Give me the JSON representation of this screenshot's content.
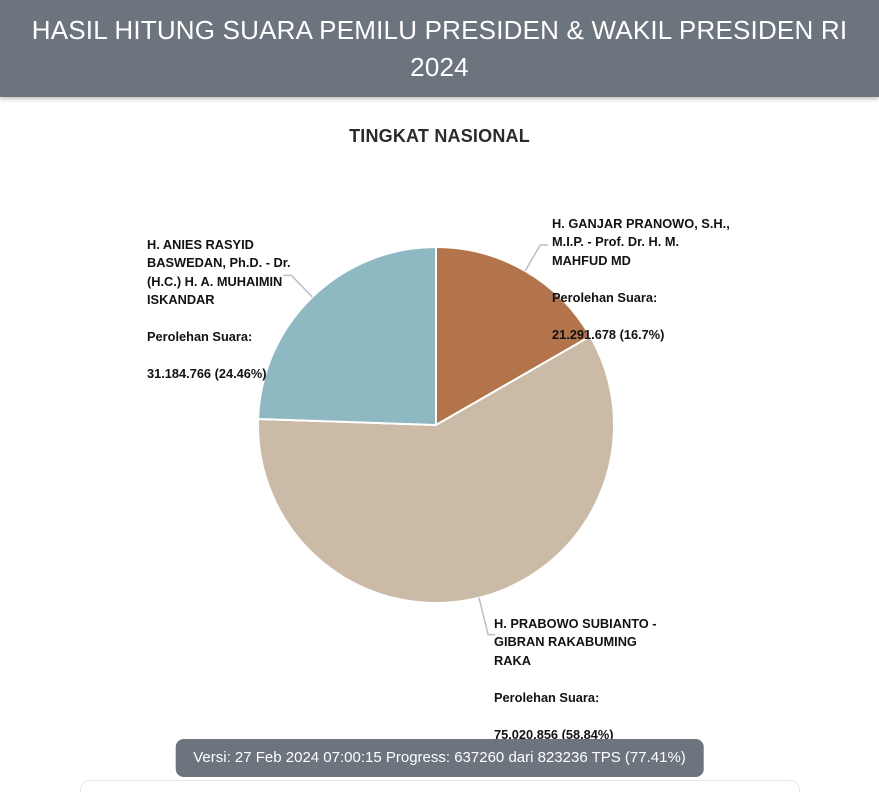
{
  "header": {
    "title": "HASIL HITUNG SUARA PEMILU PRESIDEN & WAKIL PRESIDEN RI 2024"
  },
  "section": {
    "title": "TINGKAT NASIONAL"
  },
  "chart_data": {
    "type": "pie",
    "title": "TINGKAT NASIONAL",
    "unit": "suara",
    "start_angle_deg": 0,
    "rotation": "clockwise",
    "legend_position": "none",
    "series": [
      {
        "id": "ganjar-mahfud",
        "name": "H. GANJAR PRANOWO, S.H.,\nM.I.P. - Prof. Dr. H. M.\nMAHFUD MD",
        "votes_label": "Perolehan Suara:",
        "votes": 21291678,
        "percent": 16.7,
        "value": 16.7,
        "votes_display": "21.291.678 (16.7%)",
        "color": "#b3744b"
      },
      {
        "id": "prabowo-gibran",
        "name": "H. PRABOWO SUBIANTO -\nGIBRAN RAKABUMING\nRAKA",
        "votes_label": "Perolehan Suara:",
        "votes": 75020856,
        "percent": 58.84,
        "value": 58.84,
        "votes_display": "75.020.856 (58.84%)",
        "color": "#cabaa6"
      },
      {
        "id": "anies-muhaimin",
        "name": "H. ANIES RASYID\nBASWEDAN, Ph.D. - Dr.\n(H.C.) H. A. MUHAIMIN\nISKANDAR",
        "votes_label": "Perolehan Suara:",
        "votes": 31184766,
        "percent": 24.46,
        "value": 24.46,
        "votes_display": "31.184.766 (24.46%)",
        "color": "#8eb8c2"
      }
    ]
  },
  "footer": {
    "status": "Versi: 27 Feb 2024 07:00:15 Progress: 637260 dari 823236 TPS (77.41%)",
    "versi": "27 Feb 2024 07:00:15",
    "tps_reported": 637260,
    "tps_total": 823236,
    "progress_percent": 77.41
  },
  "colors": {
    "header_bg": "#6c747e",
    "footer_bg": "#6c747e",
    "leader_line": "#b8c0c7",
    "slice_anies": "#8eb8c2",
    "slice_prabowo": "#cabaa6",
    "slice_ganjar": "#b3744b"
  }
}
